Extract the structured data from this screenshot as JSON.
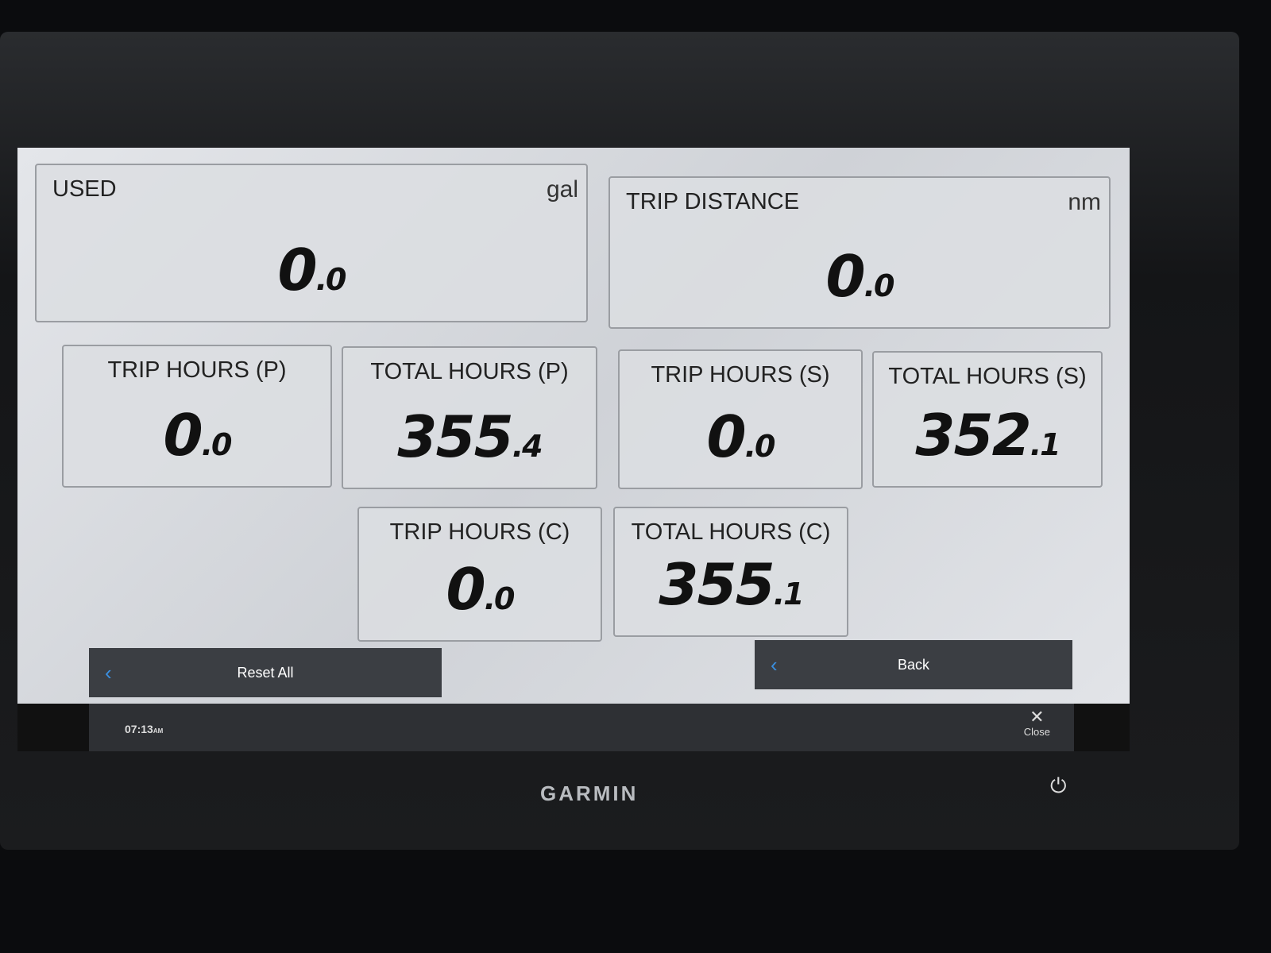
{
  "tiles": [
    {
      "label": "USED",
      "unit": "gal",
      "int": "0",
      "dec": ".0"
    },
    {
      "label": "TRIP DISTANCE",
      "unit": "nm",
      "int": "0",
      "dec": ".0"
    },
    {
      "label": "TRIP HOURS (P)",
      "int": "0",
      "dec": ".0"
    },
    {
      "label": "TOTAL HOURS (P)",
      "int": "355",
      "dec": ".4"
    },
    {
      "label": "TRIP HOURS (S)",
      "int": "0",
      "dec": ".0"
    },
    {
      "label": "TOTAL HOURS (S)",
      "int": "352",
      "dec": ".1"
    },
    {
      "label": "TRIP HOURS (C)",
      "int": "0",
      "dec": ".0"
    },
    {
      "label": "TOTAL HOURS (C)",
      "int": "355",
      "dec": ".1"
    }
  ],
  "buttons": {
    "reset_all": "Reset All",
    "back": "Back",
    "close": "Close"
  },
  "status": {
    "time": "07:13",
    "ampm": "AM"
  },
  "brand": "GARMIN",
  "icons": {
    "chevron": "chevron-left-icon",
    "close": "close-icon",
    "power": "power-icon"
  },
  "colors": {
    "accent": "#3a8fe0",
    "button_bg": "#3b3e43"
  }
}
